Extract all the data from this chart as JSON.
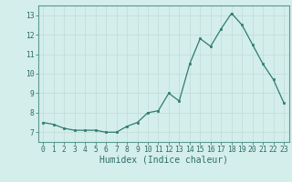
{
  "x": [
    0,
    1,
    2,
    3,
    4,
    5,
    6,
    7,
    8,
    9,
    10,
    11,
    12,
    13,
    14,
    15,
    16,
    17,
    18,
    19,
    20,
    21,
    22,
    23
  ],
  "y": [
    7.5,
    7.4,
    7.2,
    7.1,
    7.1,
    7.1,
    7.0,
    7.0,
    7.3,
    7.5,
    8.0,
    8.1,
    9.0,
    8.6,
    10.5,
    11.8,
    11.4,
    12.3,
    13.1,
    12.5,
    11.5,
    10.5,
    9.7,
    8.5
  ],
  "xlabel": "Humidex (Indice chaleur)",
  "xlim": [
    -0.5,
    23.5
  ],
  "ylim": [
    6.5,
    13.5
  ],
  "yticks": [
    7,
    8,
    9,
    10,
    11,
    12,
    13
  ],
  "xticks": [
    0,
    1,
    2,
    3,
    4,
    5,
    6,
    7,
    8,
    9,
    10,
    11,
    12,
    13,
    14,
    15,
    16,
    17,
    18,
    19,
    20,
    21,
    22,
    23
  ],
  "line_color": "#2e7d6e",
  "marker_color": "#2e7d6e",
  "bg_color": "#d4eeec",
  "grid_color": "#c0dbd8",
  "axis_color": "#5a9a90",
  "tick_label_color": "#2e6e64",
  "xlabel_color": "#2e6e64",
  "font_size_ticks": 5.8,
  "font_size_xlabel": 7.0
}
